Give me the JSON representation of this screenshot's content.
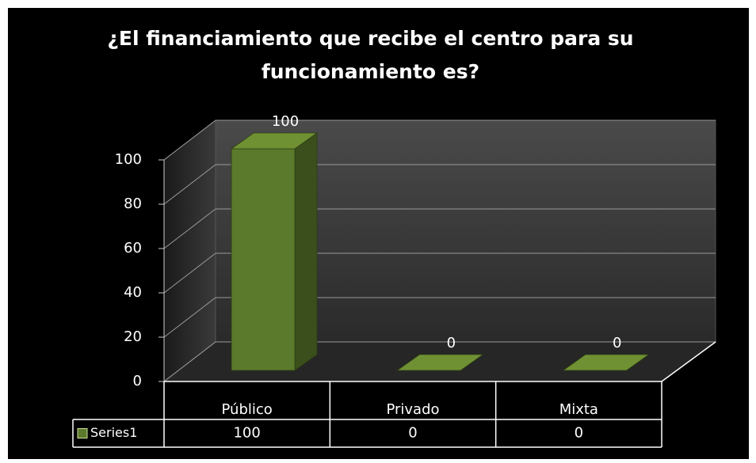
{
  "chart_data": {
    "type": "bar3d",
    "title": "¿El financiamiento que recibe el centro para su funcionamiento es?",
    "categories": [
      "Público",
      "Privado",
      "Mixta"
    ],
    "series": [
      {
        "name": "Series1",
        "color": "#5b7a2b",
        "values": [
          100,
          0,
          0
        ]
      }
    ],
    "ylim": [
      0,
      100
    ],
    "yticks": [
      0,
      20,
      40,
      60,
      80,
      100
    ],
    "grid": true,
    "data_table": true
  }
}
